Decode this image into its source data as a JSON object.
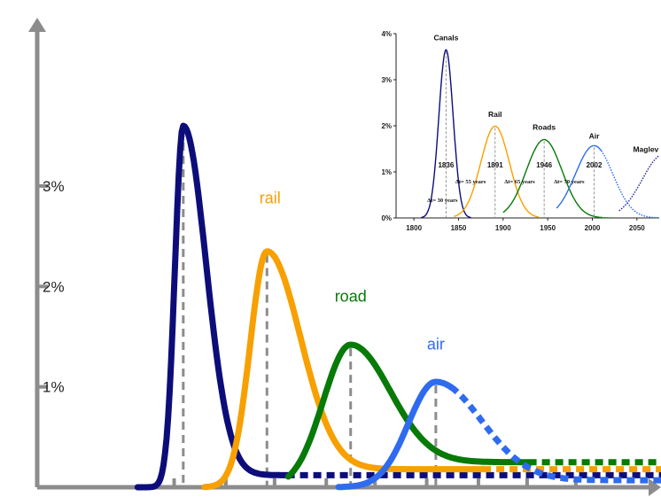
{
  "chart_data": [
    {
      "type": "line",
      "ylim": [
        0,
        0.045
      ],
      "yticks": [
        {
          "value": 0.01,
          "label": "1%"
        },
        {
          "value": 0.02,
          "label": "2%"
        },
        {
          "value": 0.03,
          "label": "3%"
        }
      ],
      "xticks": [
        1830,
        1864,
        1896,
        1930,
        1962,
        1996,
        2030,
        2062,
        2094
      ],
      "xlim": [
        1740,
        2150
      ],
      "grid": false,
      "series": [
        {
          "name": "canals",
          "color": "#0d0d7a",
          "peak_x": 1836,
          "peak_y": 0.036,
          "sigma_left": 5.5,
          "sigma_right": 15,
          "x_start": 1806,
          "x_end": 1904,
          "solid_end": 1904,
          "dotted_end": 2150,
          "tail": 0.0012,
          "label_x": 1820,
          "label_y": 0.049
        },
        {
          "name": "rail",
          "color": "#f7a000",
          "peak_x": 1891,
          "peak_y": 0.0235,
          "sigma_left": 11,
          "sigma_right": 22,
          "x_start": 1850,
          "x_end": 2150,
          "solid_end": 2033,
          "tail": 0.0018,
          "label_x": 1893,
          "label_y": 0.0283
        },
        {
          "name": "road",
          "color": "#077a07",
          "peak_x": 1946,
          "peak_y": 0.0142,
          "sigma_left": 18,
          "sigma_right": 26,
          "x_start": 1905,
          "x_end": 2150,
          "solid_end": 2063,
          "tail": 0.0025,
          "label_x": 1946,
          "label_y": 0.0185
        },
        {
          "name": "air",
          "color": "#2f6bef",
          "peak_x": 2002,
          "peak_y": 0.0105,
          "sigma_left": 18,
          "sigma_right": 30,
          "x_start": 1938,
          "x_end": 2150,
          "solid_end": 2012,
          "tail": 0.0007,
          "label_x": 2002,
          "label_y": 0.0137
        }
      ],
      "peak_markers": [
        1836,
        1891,
        1946,
        2002
      ]
    },
    {
      "type": "line",
      "xlim": [
        1780,
        2075
      ],
      "ylim": [
        0,
        0.04
      ],
      "xticks": [
        {
          "value": 1800,
          "label": "1800"
        },
        {
          "value": 1850,
          "label": "1850"
        },
        {
          "value": 1900,
          "label": "1900"
        },
        {
          "value": 1950,
          "label": "1950"
        },
        {
          "value": 2000,
          "label": "2000"
        },
        {
          "value": 2050,
          "label": "2050"
        }
      ],
      "yticks": [
        {
          "value": 0,
          "label": "0%"
        },
        {
          "value": 0.01,
          "label": "1%"
        },
        {
          "value": 0.02,
          "label": "2%"
        },
        {
          "value": 0.03,
          "label": "3%"
        },
        {
          "value": 0.04,
          "label": "4%"
        }
      ],
      "grid": false,
      "series": [
        {
          "name": "Canals",
          "color": "#0d0d7a",
          "peak_x": 1836,
          "peak_y": 0.0365,
          "sigma": 8,
          "x_start": 1808,
          "x_end": 1864,
          "solid_end": 1864,
          "year_label": "1836",
          "dt_label": "Δt= 30 years",
          "name_y": 0.0378
        },
        {
          "name": "Rail",
          "color": "#f7a000",
          "peak_x": 1891,
          "peak_y": 0.0199,
          "sigma": 16,
          "x_start": 1845,
          "x_end": 1940,
          "solid_end": 1940,
          "year_label": "1891",
          "dt_label": "Δt= 55 years",
          "name_y": 0.0212
        },
        {
          "name": "Roads",
          "color": "#077a07",
          "peak_x": 1946,
          "peak_y": 0.017,
          "sigma": 20,
          "x_start": 1900,
          "x_end": 2022,
          "solid_end": 2010,
          "year_label": "1946",
          "dt_label": "Δt= 65 years",
          "name_y": 0.0184
        },
        {
          "name": "Air",
          "color": "#2f6bef",
          "peak_x": 2002,
          "peak_y": 0.0157,
          "sigma": 21,
          "x_start": 1960,
          "x_end": 2075,
          "solid_end": 2010,
          "year_label": "2002",
          "dt_label": "Δt= 70 years",
          "name_y": 0.0164
        },
        {
          "name": "Maglev",
          "color": "#2020a0",
          "peak_x": 2080,
          "peak_y": 0.0138,
          "sigma": 24,
          "x_start": 2030,
          "x_end": 2075,
          "solid_end": 2030,
          "year_label": "",
          "dt_label": "",
          "name_y": 0.0136
        }
      ]
    }
  ]
}
